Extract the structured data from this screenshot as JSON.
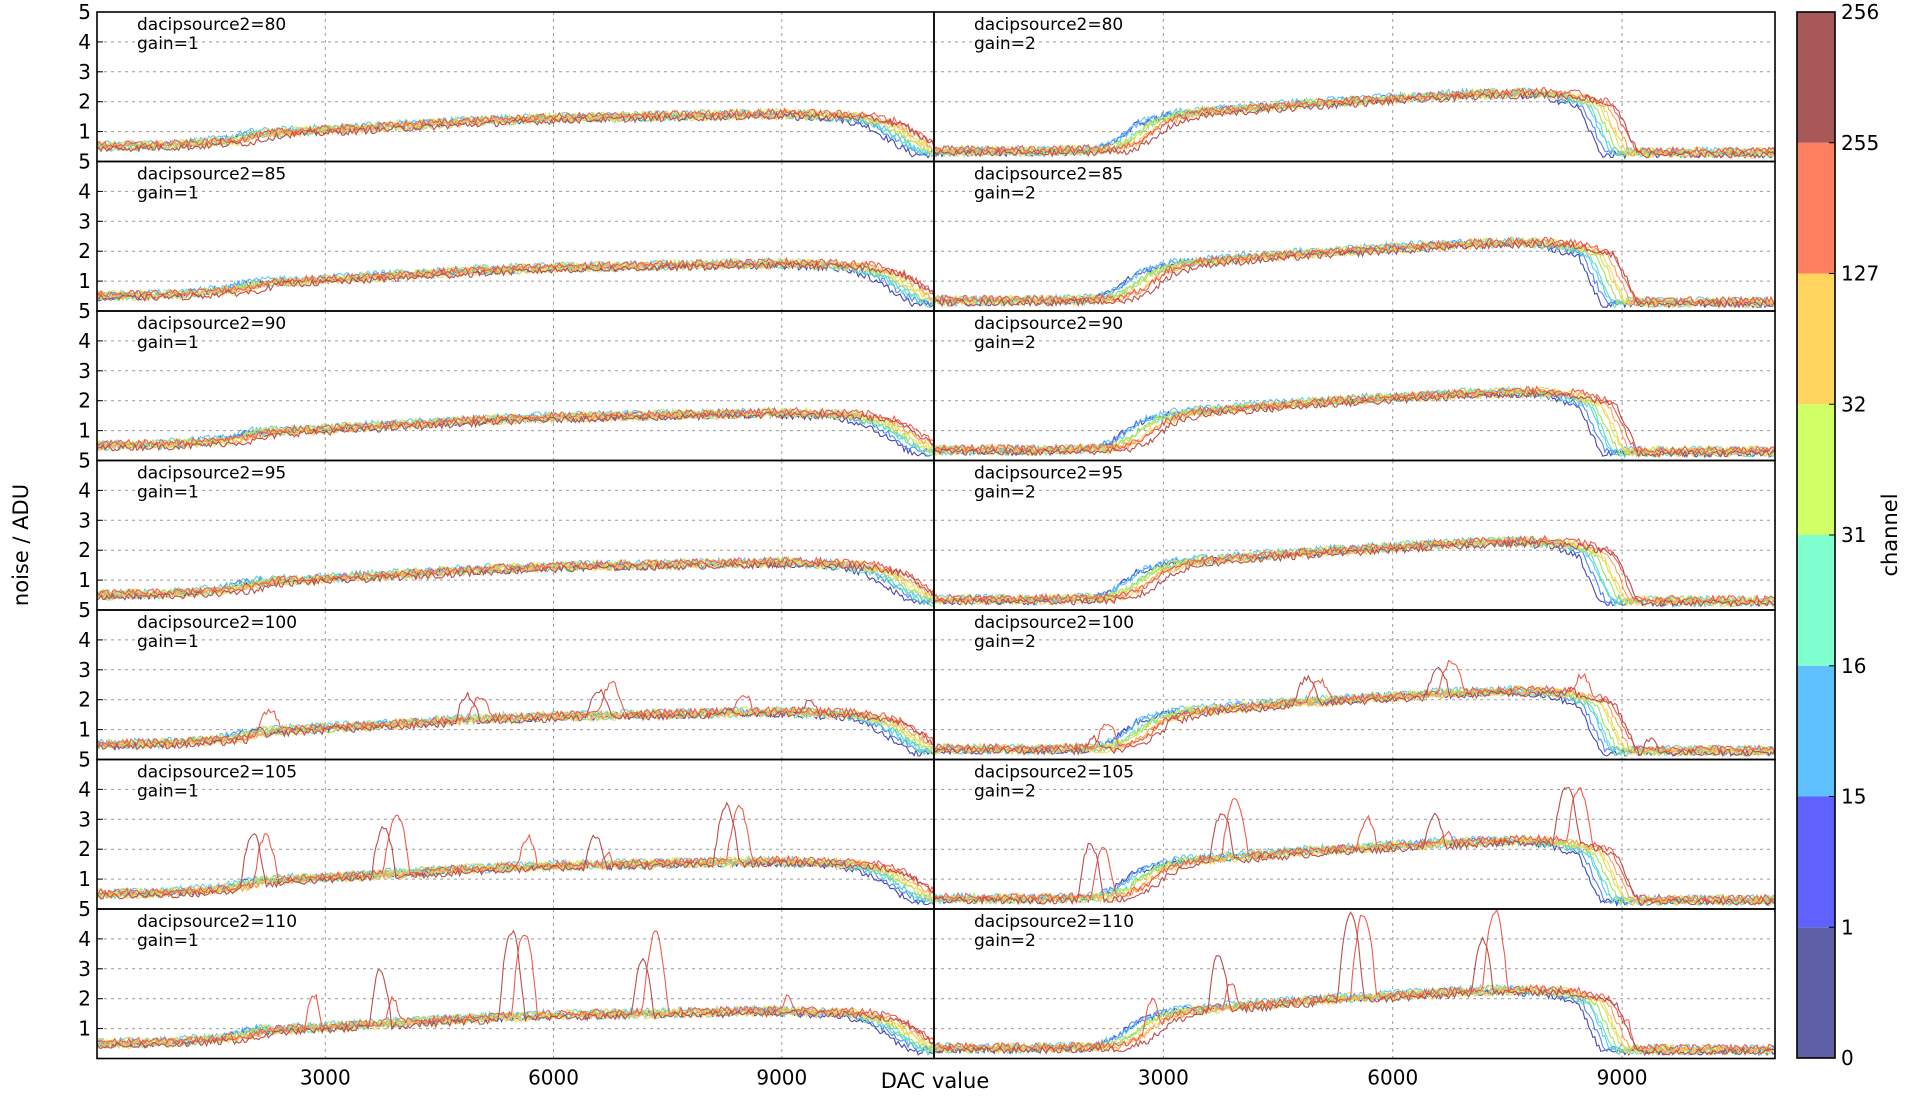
{
  "chart_data": {
    "type": "line",
    "xlabel": "DAC value",
    "ylabel": "noise / ADU",
    "xlim": [
      0,
      11000
    ],
    "ylim": [
      0,
      5
    ],
    "x_ticks": [
      "3000",
      "6000",
      "9000"
    ],
    "y_ticks": [
      "1",
      "2",
      "3",
      "4",
      "5"
    ],
    "grid": true,
    "rows": [
      "dacipsource2=80",
      "dacipsource2=85",
      "dacipsource2=90",
      "dacipsource2=95",
      "dacipsource2=100",
      "dacipsource2=105",
      "dacipsource2=110"
    ],
    "columns": [
      "gain=1",
      "gain=2"
    ],
    "colorbar": {
      "label": "channel",
      "ticks": [
        "0",
        "1",
        "15",
        "16",
        "31",
        "32",
        "127",
        "255",
        "256"
      ],
      "colors": [
        "#5f5fa8",
        "#5f62ff",
        "#5ec0ff",
        "#7fffcf",
        "#d0ff66",
        "#ffd560",
        "#ff8060",
        "#a85858"
      ]
    },
    "channel_colors": [
      "#1a1aa0",
      "#2266ff",
      "#33bbff",
      "#33ddaa",
      "#88dd33",
      "#ccdd22",
      "#ffcc33",
      "#ff8833",
      "#ee3322",
      "#aa2222"
    ],
    "profile_gain1": {
      "x": [
        0,
        1000,
        1800,
        2200,
        3000,
        4000,
        5000,
        6000,
        7000,
        8000,
        9000,
        10000,
        10400,
        10800,
        11000
      ],
      "y": [
        0.5,
        0.55,
        0.7,
        0.95,
        1.05,
        1.2,
        1.35,
        1.45,
        1.5,
        1.55,
        1.6,
        1.5,
        1.25,
        0.6,
        0.3
      ]
    },
    "profile_gain2": {
      "x": [
        0,
        1500,
        2300,
        2600,
        2900,
        3300,
        4000,
        5000,
        6000,
        7000,
        7800,
        8300,
        8700,
        9000,
        11000
      ],
      "y": [
        0.35,
        0.35,
        0.4,
        0.7,
        1.3,
        1.6,
        1.75,
        1.95,
        2.1,
        2.25,
        2.3,
        2.2,
        1.9,
        0.3,
        0.3
      ]
    }
  }
}
